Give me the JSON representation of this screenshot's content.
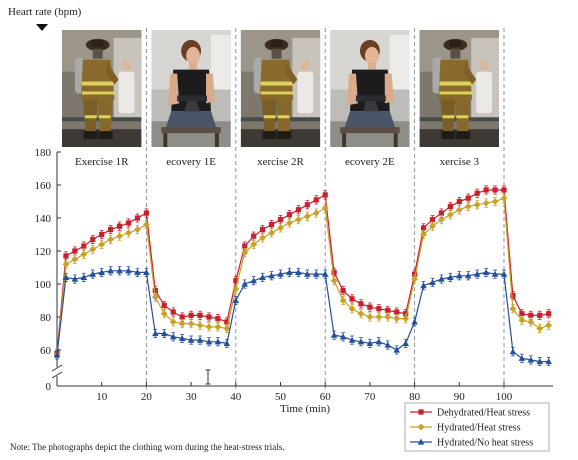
{
  "chart_data": {
    "type": "line",
    "title": "",
    "xlabel": "Time (min)",
    "ylabel": "Heart rate (bpm)",
    "xlim": [
      0,
      110
    ],
    "ylim": [
      0,
      180
    ],
    "y_axis_break": true,
    "xticks": [
      10,
      20,
      30,
      40,
      50,
      60,
      70,
      80,
      90,
      100
    ],
    "yticks": [
      0,
      60,
      80,
      100,
      120,
      140,
      160,
      180
    ],
    "legend": "bottom-right",
    "phase_boundaries": [
      20,
      40,
      60,
      80,
      100
    ],
    "phases": [
      {
        "label": "Exercise 1R",
        "start": 0,
        "end": 20,
        "photo": "firefighter-gear"
      },
      {
        "label": "ecovery 1E",
        "start": 20,
        "end": 40,
        "photo": "seated-participant"
      },
      {
        "label": "xercise 2R",
        "start": 40,
        "end": 60,
        "photo": "firefighter-gear"
      },
      {
        "label": "ecovery 2E",
        "start": 60,
        "end": 80,
        "photo": "seated-participant"
      },
      {
        "label": "xercise 3",
        "start": 80,
        "end": 100,
        "photo": "firefighter-gear"
      }
    ],
    "x": [
      0,
      2,
      4,
      6,
      8,
      10,
      12,
      14,
      16,
      18,
      20,
      22,
      24,
      26,
      28,
      30,
      32,
      34,
      36,
      38,
      40,
      42,
      44,
      46,
      48,
      50,
      52,
      54,
      56,
      58,
      60,
      62,
      64,
      66,
      68,
      70,
      72,
      74,
      76,
      78,
      80,
      82,
      84,
      86,
      88,
      90,
      92,
      94,
      96,
      98,
      100,
      102,
      104,
      106,
      108,
      110
    ],
    "series": [
      {
        "name": "Dehydrated/Heat stress",
        "color": "#c8202e",
        "marker": "square",
        "error": 2.5,
        "values": [
          58,
          117,
          120,
          123,
          127,
          130,
          133,
          135,
          137,
          140,
          143,
          96,
          87,
          83,
          80,
          81,
          81,
          80,
          79,
          77,
          102,
          123,
          129,
          133,
          136,
          139,
          142,
          145,
          148,
          151,
          154,
          107,
          96,
          91,
          88,
          86,
          85,
          84,
          83,
          82,
          106,
          134,
          139,
          143,
          147,
          150,
          152,
          155,
          157,
          157,
          157,
          93,
          82,
          81,
          81,
          82
        ]
      },
      {
        "name": "Hydrated/Heat stress",
        "color": "#c7a12a",
        "marker": "diamond",
        "error": 2.5,
        "values": [
          57,
          112,
          115,
          118,
          121,
          124,
          127,
          129,
          131,
          133,
          136,
          92,
          82,
          77,
          76,
          76,
          75,
          74,
          74,
          73,
          97,
          119,
          124,
          128,
          131,
          134,
          137,
          139,
          141,
          143,
          146,
          102,
          90,
          85,
          82,
          80,
          80,
          80,
          79,
          79,
          103,
          130,
          135,
          139,
          142,
          145,
          147,
          148,
          149,
          150,
          152,
          85,
          78,
          77,
          73,
          75
        ]
      },
      {
        "name": "Hydrated/No heat stress",
        "color": "#234f9c",
        "marker": "triangle",
        "error": 2.5,
        "values": [
          57,
          104,
          103,
          104,
          106,
          107,
          108,
          108,
          108,
          107,
          107,
          70,
          70,
          68,
          67,
          66,
          66,
          65,
          65,
          64,
          90,
          100,
          102,
          104,
          105,
          106,
          107,
          107,
          106,
          106,
          106,
          69,
          68,
          66,
          65,
          64,
          65,
          63,
          60,
          64,
          77,
          99,
          101,
          103,
          104,
          105,
          105,
          106,
          107,
          106,
          106,
          59,
          55,
          54,
          53,
          53
        ]
      }
    ]
  },
  "note": "Note: The photographs depict the clothing worn during the heat-stress trials."
}
